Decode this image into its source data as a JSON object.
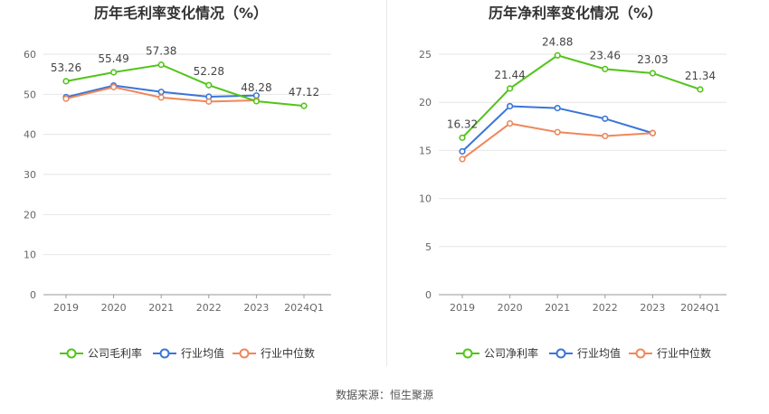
{
  "chart_data": [
    {
      "type": "line",
      "title": "历年毛利率变化情况（%）",
      "categories": [
        "2019",
        "2020",
        "2021",
        "2022",
        "2023",
        "2024Q1"
      ],
      "ylim": [
        0,
        60
      ],
      "yticks": [
        0,
        10,
        20,
        30,
        40,
        50,
        60
      ],
      "grid": true,
      "legend": "bottom",
      "series": [
        {
          "name": "公司毛利率",
          "color": "#52c41a",
          "values": [
            53.26,
            55.49,
            57.38,
            52.28,
            48.28,
            47.12
          ],
          "labels": true
        },
        {
          "name": "行业均值",
          "color": "#3a75d8",
          "values": [
            49.3,
            52.2,
            50.6,
            49.4,
            49.7,
            null
          ],
          "labels": false
        },
        {
          "name": "行业中位数",
          "color": "#f0875a",
          "values": [
            48.9,
            51.8,
            49.2,
            48.2,
            48.5,
            null
          ],
          "labels": false
        }
      ]
    },
    {
      "type": "line",
      "title": "历年净利率变化情况（%）",
      "categories": [
        "2019",
        "2020",
        "2021",
        "2022",
        "2023",
        "2024Q1"
      ],
      "ylim": [
        0,
        25
      ],
      "yticks": [
        0,
        5,
        10,
        15,
        20,
        25
      ],
      "grid": true,
      "legend": "bottom",
      "series": [
        {
          "name": "公司净利率",
          "color": "#52c41a",
          "values": [
            16.32,
            21.44,
            24.88,
            23.46,
            23.03,
            21.34
          ],
          "labels": true
        },
        {
          "name": "行业均值",
          "color": "#3a75d8",
          "values": [
            14.9,
            19.6,
            19.4,
            18.3,
            16.8,
            null
          ],
          "labels": false
        },
        {
          "name": "行业中位数",
          "color": "#f0875a",
          "values": [
            14.1,
            17.8,
            16.9,
            16.5,
            16.8,
            null
          ],
          "labels": false
        }
      ]
    }
  ],
  "footer": {
    "source": "数据来源：恒生聚源"
  }
}
